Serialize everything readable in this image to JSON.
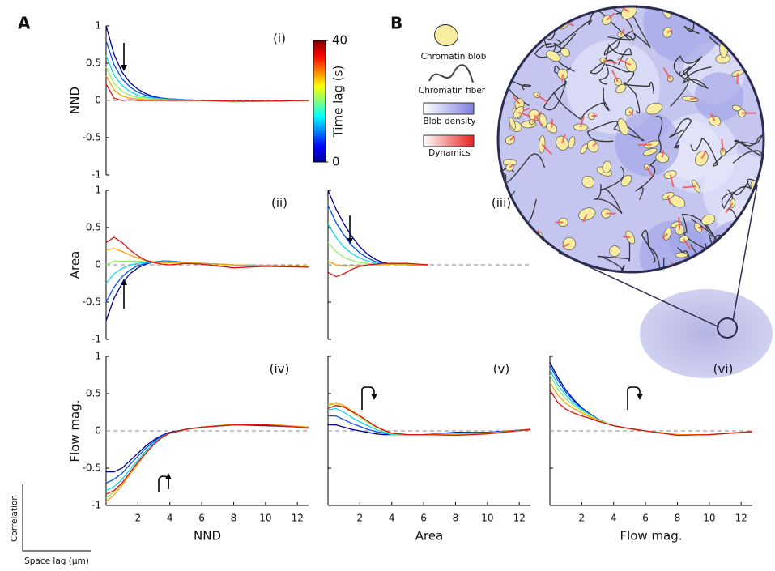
{
  "panel_labels": [
    "A",
    "B"
  ],
  "corner": {
    "y_label": "Correlation",
    "x_label": "Space lag (µm)"
  },
  "legend_b": {
    "items": [
      "Chromatin blob",
      "Chromatin fiber",
      "Blob density",
      "Dynamics"
    ]
  },
  "chart_data": [
    {
      "type": "line",
      "label": "(i)",
      "ylabel": "NND",
      "xlim": [
        0,
        12.7
      ],
      "ylim": [
        -1,
        1
      ],
      "yticks": [
        -1,
        -0.5,
        0,
        0.5,
        1
      ],
      "show_ytick_labels": true,
      "zero_line": true,
      "colorbar": {
        "label": "Time lag (s)",
        "lim": [
          0,
          40
        ],
        "ticks": [
          0,
          40
        ]
      },
      "x": [
        0,
        0.5,
        1,
        1.5,
        2,
        2.5,
        3,
        3.5,
        4,
        5,
        6,
        8,
        10,
        12.7
      ],
      "series": [
        {
          "color": "#00008f",
          "values": [
            1.0,
            0.62,
            0.38,
            0.24,
            0.15,
            0.09,
            0.05,
            0.03,
            0.02,
            0.01,
            0.0,
            -0.01,
            -0.01,
            0.0
          ]
        },
        {
          "color": "#0050ff",
          "values": [
            0.8,
            0.48,
            0.29,
            0.18,
            0.11,
            0.07,
            0.04,
            0.03,
            0.02,
            0.01,
            0.0,
            -0.01,
            -0.01,
            0.0
          ]
        },
        {
          "color": "#10d8f0",
          "values": [
            0.6,
            0.34,
            0.2,
            0.12,
            0.07,
            0.04,
            0.03,
            0.02,
            0.01,
            0.01,
            0.0,
            -0.02,
            -0.01,
            0.0
          ]
        },
        {
          "color": "#90f060",
          "values": [
            0.45,
            0.23,
            0.12,
            0.07,
            0.04,
            0.03,
            0.02,
            0.01,
            0.01,
            0.0,
            0.0,
            -0.02,
            -0.01,
            0.0
          ]
        },
        {
          "color": "#ffa000",
          "values": [
            0.33,
            0.14,
            0.06,
            0.03,
            0.02,
            0.01,
            0.01,
            0.01,
            0.0,
            0.0,
            0.0,
            -0.01,
            -0.01,
            0.0
          ]
        },
        {
          "color": "#e01010",
          "values": [
            0.22,
            0.03,
            0.0,
            0.01,
            0.0,
            0.0,
            0.0,
            0.0,
            0.0,
            0.0,
            0.0,
            -0.01,
            -0.01,
            0.0
          ]
        }
      ]
    },
    {
      "type": "line",
      "label": "(ii)",
      "ylabel": "Area",
      "xlim": [
        0,
        12.7
      ],
      "ylim": [
        -1,
        1
      ],
      "yticks": [
        -1,
        -0.5,
        0,
        0.5,
        1
      ],
      "show_ytick_labels": true,
      "zero_line": true,
      "x": [
        0,
        0.5,
        1,
        1.5,
        2,
        2.5,
        3,
        3.5,
        4,
        5,
        6,
        8,
        10,
        12.7
      ],
      "series": [
        {
          "color": "#00008f",
          "values": [
            -0.75,
            -0.45,
            -0.25,
            -0.12,
            -0.04,
            0.01,
            0.04,
            0.05,
            0.05,
            0.03,
            0.02,
            0.0,
            -0.01,
            -0.02
          ]
        },
        {
          "color": "#0050ff",
          "values": [
            -0.5,
            -0.3,
            -0.16,
            -0.07,
            -0.01,
            0.02,
            0.04,
            0.05,
            0.05,
            0.03,
            0.02,
            0.0,
            -0.01,
            -0.02
          ]
        },
        {
          "color": "#10d8f0",
          "values": [
            -0.25,
            -0.12,
            -0.05,
            0.0,
            0.02,
            0.03,
            0.04,
            0.04,
            0.04,
            0.03,
            0.02,
            0.0,
            -0.01,
            -0.02
          ]
        },
        {
          "color": "#90f060",
          "values": [
            0.0,
            0.05,
            0.05,
            0.05,
            0.05,
            0.04,
            0.04,
            0.04,
            0.04,
            0.03,
            0.02,
            0.0,
            -0.01,
            -0.02
          ]
        },
        {
          "color": "#ffa000",
          "values": [
            0.2,
            0.22,
            0.18,
            0.13,
            0.09,
            0.06,
            0.04,
            0.03,
            0.03,
            0.03,
            0.02,
            0.0,
            -0.01,
            -0.02
          ]
        },
        {
          "color": "#e01010",
          "values": [
            0.3,
            0.37,
            0.3,
            0.2,
            0.12,
            0.06,
            0.03,
            0.01,
            0.0,
            0.02,
            0.01,
            -0.04,
            -0.02,
            -0.03
          ]
        }
      ]
    },
    {
      "type": "line",
      "label": "(iii)",
      "xlim": [
        0,
        12.7
      ],
      "ylim": [
        -1,
        1
      ],
      "yticks": [
        -1,
        -0.5,
        0,
        0.5,
        1
      ],
      "show_ytick_labels": false,
      "zero_line": true,
      "x": [
        0,
        0.5,
        1,
        1.5,
        2,
        2.5,
        3,
        3.5,
        4,
        5,
        6.3
      ],
      "series": [
        {
          "color": "#00008f",
          "values": [
            1.0,
            0.75,
            0.55,
            0.38,
            0.24,
            0.14,
            0.07,
            0.03,
            0.01,
            0.0,
            0.0
          ]
        },
        {
          "color": "#0050ff",
          "values": [
            0.8,
            0.57,
            0.4,
            0.26,
            0.16,
            0.09,
            0.04,
            0.02,
            0.01,
            0.0,
            0.0
          ]
        },
        {
          "color": "#10d8f0",
          "values": [
            0.55,
            0.37,
            0.24,
            0.15,
            0.09,
            0.05,
            0.02,
            0.01,
            0.01,
            0.0,
            0.0
          ]
        },
        {
          "color": "#90f060",
          "values": [
            0.3,
            0.18,
            0.1,
            0.06,
            0.03,
            0.02,
            0.01,
            0.01,
            0.01,
            0.01,
            0.0
          ]
        },
        {
          "color": "#ffa000",
          "values": [
            0.05,
            0.0,
            -0.01,
            -0.01,
            -0.01,
            0.0,
            0.0,
            0.0,
            0.01,
            0.01,
            0.0
          ]
        },
        {
          "color": "#e01010",
          "values": [
            -0.1,
            -0.16,
            -0.12,
            -0.06,
            -0.02,
            0.0,
            0.01,
            0.02,
            0.02,
            0.02,
            0.0
          ]
        }
      ]
    },
    {
      "type": "line",
      "label": "(iv)",
      "ylabel": "Flow mag.",
      "xlabel": "NND",
      "xlim": [
        0,
        12.7
      ],
      "ylim": [
        -1,
        1
      ],
      "yticks": [
        -1,
        -0.5,
        0,
        0.5,
        1
      ],
      "xticks": [
        2,
        4,
        6,
        8,
        10,
        12
      ],
      "show_ytick_labels": true,
      "zero_line": true,
      "x": [
        0,
        0.5,
        1,
        1.5,
        2,
        2.5,
        3,
        3.5,
        4,
        5,
        6,
        8,
        10,
        12.7
      ],
      "series": [
        {
          "color": "#00008f",
          "values": [
            -0.55,
            -0.55,
            -0.5,
            -0.4,
            -0.3,
            -0.2,
            -0.12,
            -0.06,
            -0.02,
            0.02,
            0.05,
            0.08,
            0.07,
            0.05
          ]
        },
        {
          "color": "#0050ff",
          "values": [
            -0.7,
            -0.65,
            -0.57,
            -0.45,
            -0.34,
            -0.23,
            -0.14,
            -0.07,
            -0.03,
            0.02,
            0.05,
            0.08,
            0.08,
            0.05
          ]
        },
        {
          "color": "#10d8f0",
          "values": [
            -0.8,
            -0.75,
            -0.65,
            -0.52,
            -0.39,
            -0.27,
            -0.16,
            -0.08,
            -0.03,
            0.02,
            0.05,
            0.08,
            0.08,
            0.05
          ]
        },
        {
          "color": "#90f060",
          "values": [
            -0.9,
            -0.82,
            -0.7,
            -0.56,
            -0.42,
            -0.29,
            -0.18,
            -0.09,
            -0.03,
            0.02,
            0.05,
            0.09,
            0.09,
            0.05
          ]
        },
        {
          "color": "#ffa000",
          "values": [
            -0.95,
            -0.86,
            -0.73,
            -0.58,
            -0.44,
            -0.3,
            -0.18,
            -0.09,
            -0.03,
            0.02,
            0.05,
            0.09,
            0.09,
            0.05
          ]
        },
        {
          "color": "#e01010",
          "values": [
            -0.85,
            -0.8,
            -0.7,
            -0.56,
            -0.42,
            -0.3,
            -0.18,
            -0.09,
            -0.03,
            0.02,
            0.05,
            0.08,
            0.08,
            0.04
          ]
        }
      ]
    },
    {
      "type": "line",
      "label": "(v)",
      "xlabel": "Area",
      "xlim": [
        0,
        12.7
      ],
      "ylim": [
        -1,
        1
      ],
      "yticks": [
        -1,
        -0.5,
        0,
        0.5,
        1
      ],
      "xticks": [
        2,
        4,
        6,
        8,
        10,
        12
      ],
      "show_ytick_labels": false,
      "zero_line": true,
      "x": [
        0,
        0.5,
        1,
        1.5,
        2,
        2.5,
        3,
        3.5,
        4,
        5,
        6,
        8,
        10,
        12.7
      ],
      "series": [
        {
          "color": "#00008f",
          "values": [
            0.08,
            0.08,
            0.05,
            0.02,
            0.0,
            -0.02,
            -0.04,
            -0.05,
            -0.05,
            -0.05,
            -0.05,
            -0.02,
            -0.02,
            0.02
          ]
        },
        {
          "color": "#0050ff",
          "values": [
            0.2,
            0.2,
            0.15,
            0.1,
            0.06,
            0.02,
            -0.01,
            -0.03,
            -0.05,
            -0.05,
            -0.05,
            -0.03,
            -0.02,
            0.02
          ]
        },
        {
          "color": "#10d8f0",
          "values": [
            0.28,
            0.3,
            0.25,
            0.18,
            0.12,
            0.07,
            0.02,
            -0.02,
            -0.05,
            -0.05,
            -0.05,
            -0.04,
            -0.03,
            0.02
          ]
        },
        {
          "color": "#90f060",
          "values": [
            0.34,
            0.36,
            0.32,
            0.25,
            0.18,
            0.11,
            0.05,
            0.0,
            -0.04,
            -0.05,
            -0.05,
            -0.04,
            -0.03,
            0.02
          ]
        },
        {
          "color": "#ffa000",
          "values": [
            0.35,
            0.38,
            0.34,
            0.27,
            0.2,
            0.13,
            0.06,
            0.01,
            -0.03,
            -0.05,
            -0.05,
            -0.05,
            -0.03,
            0.02
          ]
        },
        {
          "color": "#e01010",
          "values": [
            0.3,
            0.34,
            0.32,
            0.26,
            0.2,
            0.13,
            0.06,
            0.01,
            -0.03,
            -0.05,
            -0.05,
            -0.06,
            -0.04,
            0.02
          ]
        }
      ]
    },
    {
      "type": "line",
      "label": "(vi)",
      "xlabel": "Flow mag.",
      "xlim": [
        0,
        12.7
      ],
      "ylim": [
        -1,
        1
      ],
      "yticks": [
        -1,
        -0.5,
        0,
        0.5,
        1
      ],
      "xticks": [
        2,
        4,
        6,
        8,
        10,
        12
      ],
      "show_ytick_labels": false,
      "zero_line": true,
      "x": [
        0,
        0.5,
        1,
        1.5,
        2,
        2.5,
        3,
        3.5,
        4,
        5,
        6,
        8,
        10,
        12.7
      ],
      "series": [
        {
          "color": "#00008f",
          "values": [
            0.92,
            0.72,
            0.55,
            0.42,
            0.31,
            0.23,
            0.16,
            0.11,
            0.07,
            0.03,
            0.0,
            -0.05,
            -0.05,
            -0.01
          ]
        },
        {
          "color": "#0050ff",
          "values": [
            0.88,
            0.68,
            0.52,
            0.4,
            0.3,
            0.22,
            0.16,
            0.11,
            0.07,
            0.03,
            0.0,
            -0.05,
            -0.05,
            -0.01
          ]
        },
        {
          "color": "#10d8f0",
          "values": [
            0.82,
            0.62,
            0.48,
            0.37,
            0.29,
            0.22,
            0.15,
            0.11,
            0.07,
            0.03,
            0.0,
            -0.05,
            -0.05,
            -0.01
          ]
        },
        {
          "color": "#90f060",
          "values": [
            0.75,
            0.56,
            0.43,
            0.34,
            0.27,
            0.21,
            0.15,
            0.11,
            0.07,
            0.03,
            0.0,
            -0.05,
            -0.05,
            -0.01
          ]
        },
        {
          "color": "#ffa000",
          "values": [
            0.65,
            0.48,
            0.37,
            0.3,
            0.24,
            0.19,
            0.14,
            0.1,
            0.07,
            0.03,
            0.0,
            -0.05,
            -0.05,
            -0.01
          ]
        },
        {
          "color": "#e01010",
          "values": [
            0.55,
            0.38,
            0.29,
            0.24,
            0.2,
            0.17,
            0.13,
            0.1,
            0.07,
            0.03,
            0.0,
            -0.06,
            -0.05,
            -0.01
          ]
        }
      ]
    }
  ]
}
